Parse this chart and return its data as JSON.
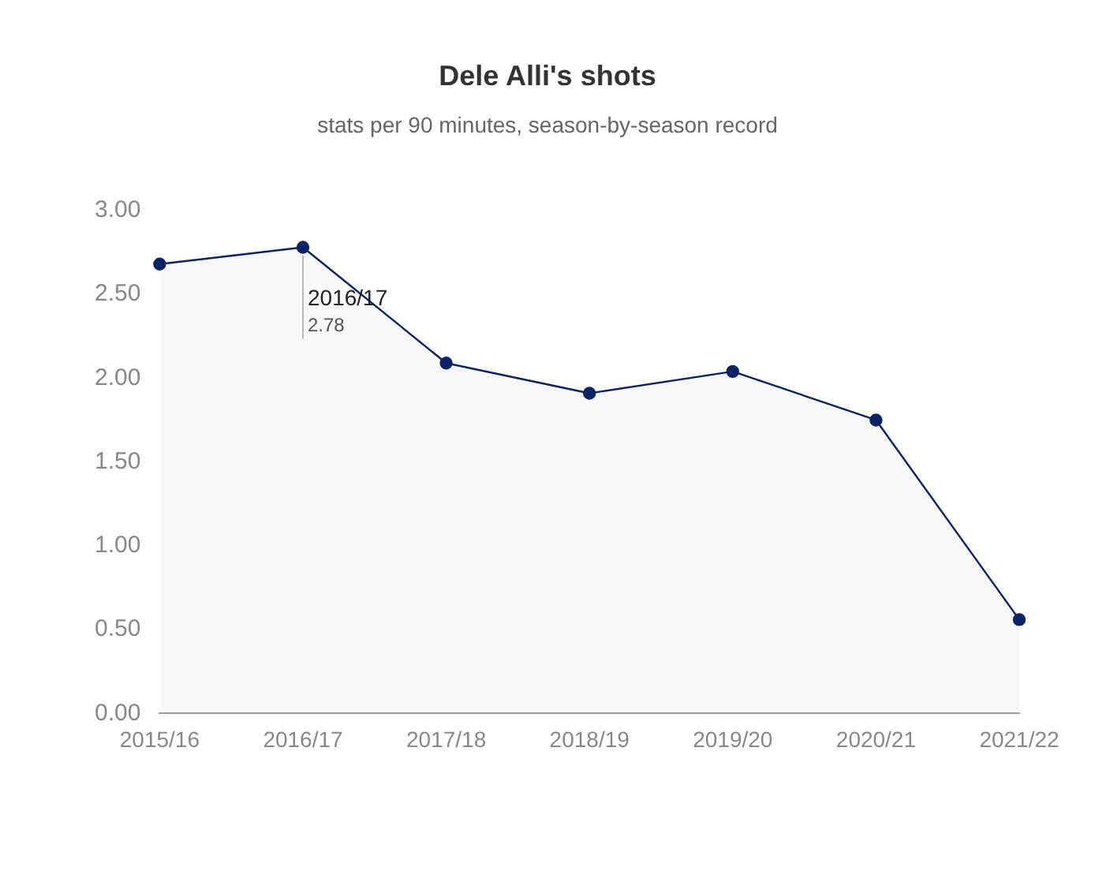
{
  "chart_data": {
    "type": "area",
    "title": "Dele Alli's shots",
    "subtitle": "stats per 90 minutes, season-by-season record",
    "categories": [
      "2015/16",
      "2016/17",
      "2017/18",
      "2018/19",
      "2019/20",
      "2020/21",
      "2021/22"
    ],
    "series": [
      {
        "color": "#0b2265",
        "values": [
          2.68,
          2.78,
          2.09,
          1.91,
          2.04,
          1.75,
          0.56
        ]
      }
    ],
    "ylim": [
      0,
      3
    ],
    "yticks": [
      {
        "value": 0,
        "label": "0.00"
      },
      {
        "value": 0.5,
        "label": "0.50"
      },
      {
        "value": 1,
        "label": "1.00"
      },
      {
        "value": 1.5,
        "label": "1.50"
      },
      {
        "value": 2,
        "label": "2.00"
      },
      {
        "value": 2.5,
        "label": "2.50"
      },
      {
        "value": 3,
        "label": "3.00"
      }
    ],
    "grid": false,
    "legend": false,
    "marker": "circle",
    "line_style": "solid",
    "annotations": [
      {
        "text": "2016/17",
        "x": "2016/17",
        "y": 2.78
      },
      {
        "text": "2.78",
        "x": "2016/17",
        "y": 2.78
      }
    ]
  }
}
